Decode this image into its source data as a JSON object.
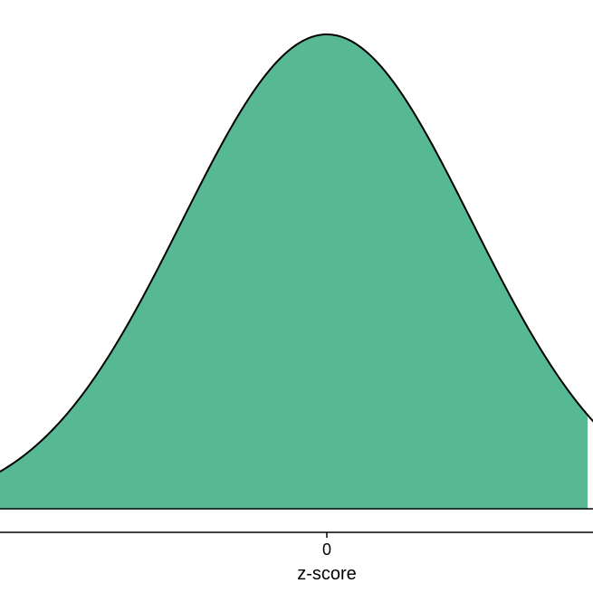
{
  "chart_data": {
    "type": "area",
    "title": "",
    "xlabel": "z-score",
    "ylabel": "",
    "distribution": "standard normal",
    "xlim": [
      -2.6,
      2.1
    ],
    "ylim": [
      0,
      0.399
    ],
    "shaded_region": {
      "from": -2.6,
      "to": 1.8
    },
    "x_ticks": [
      0
    ],
    "x_tick_labels": [
      "0"
    ],
    "grid": false,
    "fill_color": "#57b894",
    "curve_color": "#000000"
  }
}
